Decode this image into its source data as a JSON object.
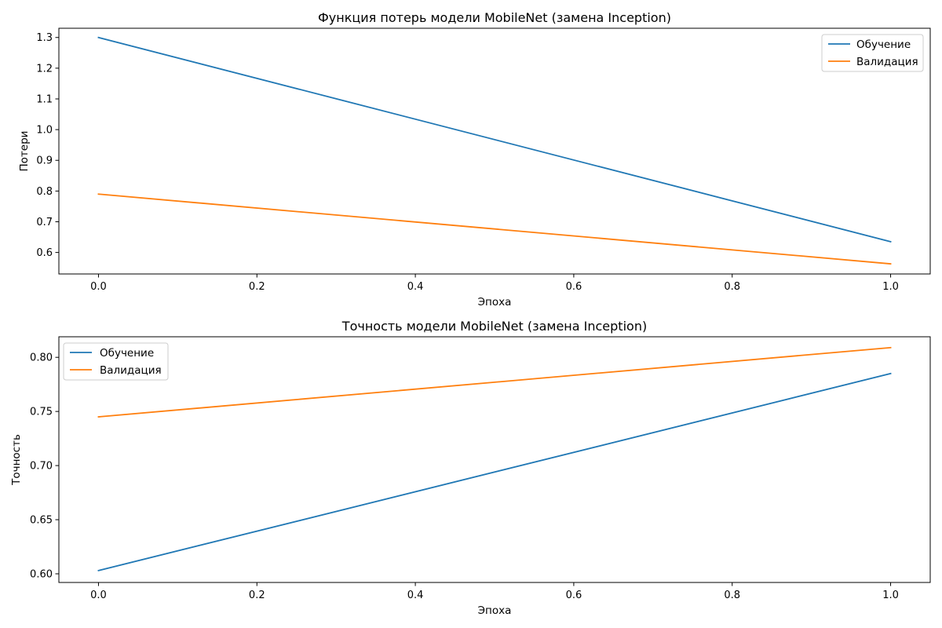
{
  "chart_data": [
    {
      "type": "line",
      "title": "Функция потерь модели MobileNet (замена Inception)",
      "xlabel": "Эпоха",
      "ylabel": "Потери",
      "x": [
        0.0,
        1.0
      ],
      "xlim": [
        -0.05,
        1.05
      ],
      "ylim": [
        0.53,
        1.33
      ],
      "xticks": [
        0.0,
        0.2,
        0.4,
        0.6,
        0.8,
        1.0
      ],
      "xtick_labels": [
        "0.0",
        "0.2",
        "0.4",
        "0.6",
        "0.8",
        "1.0"
      ],
      "yticks": [
        0.6,
        0.7,
        0.8,
        0.9,
        1.0,
        1.1,
        1.2,
        1.3
      ],
      "ytick_labels": [
        "0.6",
        "0.7",
        "0.8",
        "0.9",
        "1.0",
        "1.1",
        "1.2",
        "1.3"
      ],
      "grid": false,
      "legend_position": "upper right",
      "series": [
        {
          "name": "Обучение",
          "color": "#1f77b4",
          "values": [
            1.3,
            0.635
          ]
        },
        {
          "name": "Валидация",
          "color": "#ff7f0e",
          "values": [
            0.79,
            0.563
          ]
        }
      ]
    },
    {
      "type": "line",
      "title": "Точность модели MobileNet (замена Inception)",
      "xlabel": "Эпоха",
      "ylabel": "Точность",
      "x": [
        0.0,
        1.0
      ],
      "xlim": [
        -0.05,
        1.05
      ],
      "ylim": [
        0.592,
        0.819
      ],
      "xticks": [
        0.0,
        0.2,
        0.4,
        0.6,
        0.8,
        1.0
      ],
      "xtick_labels": [
        "0.0",
        "0.2",
        "0.4",
        "0.6",
        "0.8",
        "1.0"
      ],
      "yticks": [
        0.6,
        0.65,
        0.7,
        0.75,
        0.8
      ],
      "ytick_labels": [
        "0.60",
        "0.65",
        "0.70",
        "0.75",
        "0.80"
      ],
      "grid": false,
      "legend_position": "upper left",
      "series": [
        {
          "name": "Обучение",
          "color": "#1f77b4",
          "values": [
            0.603,
            0.785
          ]
        },
        {
          "name": "Валидация",
          "color": "#ff7f0e",
          "values": [
            0.745,
            0.809
          ]
        }
      ]
    }
  ]
}
